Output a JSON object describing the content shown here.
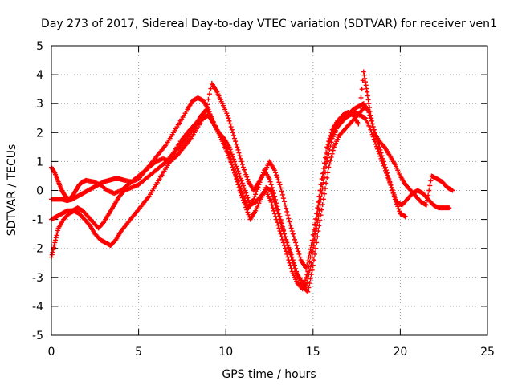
{
  "chart_data": {
    "type": "scatter",
    "title": "Day 273 of 2017, Sidereal Day-to-day VTEC variation (SDTVAR) for receiver ven1",
    "xlabel": "GPS time / hours",
    "ylabel": "SDTVAR / TECUs",
    "xlim": [
      0,
      25
    ],
    "ylim": [
      -5,
      5
    ],
    "xticks": [
      0,
      5,
      10,
      15,
      20,
      25
    ],
    "yticks": [
      -5,
      -4,
      -3,
      -2,
      -1,
      0,
      1,
      2,
      3,
      4,
      5
    ],
    "grid": true,
    "legend": "none",
    "marker": "+",
    "color": "#ff0000",
    "series": [
      {
        "x": [
          0.0,
          0.3,
          0.6,
          0.9,
          1.2,
          1.5,
          1.8,
          2.1,
          2.4,
          2.7,
          3.0,
          3.3,
          3.6,
          3.9,
          4.2,
          4.6,
          5.0,
          5.4,
          5.8,
          6.2,
          6.6,
          7.0,
          7.4,
          7.8,
          8.1,
          8.4,
          8.7,
          9.0,
          9.3,
          9.6,
          9.9,
          10.2,
          10.5,
          10.8,
          11.1,
          11.4,
          11.7,
          12.0,
          12.3,
          12.6,
          12.9,
          13.2,
          13.5,
          13.8,
          14.1,
          14.4,
          14.7,
          15.0,
          15.3,
          15.6,
          15.9,
          16.2,
          16.5,
          16.8,
          17.1,
          17.4,
          17.7,
          18.0,
          18.3,
          18.6,
          18.9,
          19.2,
          19.5,
          19.8,
          20.1,
          20.4,
          20.7,
          21.0,
          21.3,
          21.6,
          21.9,
          22.2,
          22.5,
          22.8
        ],
        "y": [
          -0.3,
          -0.3,
          -0.3,
          -0.35,
          -0.3,
          -0.2,
          -0.1,
          0.0,
          0.1,
          0.2,
          0.3,
          0.35,
          0.4,
          0.4,
          0.35,
          0.3,
          0.4,
          0.7,
          1.0,
          1.3,
          1.6,
          2.0,
          2.4,
          2.8,
          3.1,
          3.2,
          3.1,
          2.8,
          2.3,
          2.0,
          1.8,
          1.5,
          1.0,
          0.5,
          0.0,
          -0.5,
          -0.4,
          -0.2,
          0.0,
          -0.4,
          -1.0,
          -1.6,
          -2.2,
          -2.8,
          -3.2,
          -3.4,
          -2.8,
          -1.8,
          -0.6,
          0.6,
          1.6,
          2.1,
          2.3,
          2.5,
          2.6,
          2.7,
          2.6,
          2.5,
          2.1,
          1.6,
          1.1,
          0.6,
          0.1,
          -0.4,
          -0.5,
          -0.3,
          -0.1,
          0.0,
          -0.1,
          -0.3,
          -0.5,
          -0.6,
          -0.6,
          -0.6
        ]
      },
      {
        "x": [
          0.0,
          0.3,
          0.6,
          0.9,
          1.2,
          1.5,
          1.8,
          2.1,
          2.4,
          2.7,
          3.0,
          3.3,
          3.6,
          3.9,
          4.2,
          4.6,
          5.0,
          5.4,
          5.8,
          6.2,
          6.6,
          7.0,
          7.4,
          7.8,
          8.1,
          8.4,
          8.7,
          9.0,
          9.3,
          9.6,
          9.9,
          10.2,
          10.5,
          10.8,
          11.1,
          11.4,
          11.7,
          12.0,
          12.3,
          12.6,
          12.9,
          13.2,
          13.5,
          13.8,
          14.1,
          14.4,
          14.7,
          15.0,
          15.3,
          15.6,
          15.9,
          16.2,
          16.5,
          16.8,
          17.1,
          17.4,
          17.7,
          18.0
        ],
        "y": [
          -1.0,
          -0.9,
          -0.8,
          -0.7,
          -0.7,
          -0.6,
          -0.7,
          -0.9,
          -1.1,
          -1.3,
          -1.1,
          -0.8,
          -0.5,
          -0.2,
          0.0,
          0.1,
          0.2,
          0.4,
          0.6,
          0.8,
          1.0,
          1.3,
          1.7,
          2.0,
          2.2,
          2.4,
          2.5,
          2.6,
          2.3,
          2.0,
          1.7,
          1.2,
          0.6,
          0.0,
          -0.5,
          -1.0,
          -0.7,
          -0.3,
          0.1,
          0.0,
          -0.6,
          -1.2,
          -1.8,
          -2.3,
          -2.9,
          -3.3,
          -3.5,
          -2.6,
          -1.4,
          -0.3,
          0.8,
          1.5,
          1.9,
          2.1,
          2.3,
          2.5,
          2.7,
          2.9
        ]
      },
      {
        "x": [
          0.0,
          0.2,
          0.4,
          0.7,
          1.0,
          1.3,
          1.6,
          1.9,
          2.2,
          2.5,
          2.8,
          3.1,
          3.4,
          3.7,
          4.0,
          4.4,
          4.8,
          5.2,
          5.6,
          6.0,
          6.4,
          6.8,
          7.2,
          7.6,
          8.0,
          8.3,
          8.6,
          8.9,
          9.2,
          9.5,
          9.8,
          10.1,
          10.4,
          10.7,
          11.0,
          11.3,
          11.6,
          11.9,
          12.2,
          12.5,
          12.8,
          13.1,
          13.4,
          13.7,
          14.0,
          14.3,
          14.6,
          14.9,
          15.2,
          15.5,
          15.8,
          16.1,
          16.4,
          16.7,
          17.0,
          17.3,
          17.6,
          17.9,
          18.2,
          18.5,
          18.8,
          19.1,
          19.4,
          19.7,
          20.0,
          20.3
        ],
        "y": [
          -2.3,
          -1.8,
          -1.3,
          -1.0,
          -0.8,
          -0.7,
          -0.8,
          -1.0,
          -1.2,
          -1.5,
          -1.7,
          -1.8,
          -1.9,
          -1.7,
          -1.4,
          -1.1,
          -0.8,
          -0.5,
          -0.2,
          0.2,
          0.6,
          1.0,
          1.4,
          1.7,
          2.0,
          2.3,
          2.6,
          2.8,
          2.5,
          2.1,
          1.7,
          1.3,
          0.8,
          0.3,
          -0.2,
          -0.6,
          -0.3,
          0.2,
          0.7,
          0.4,
          -0.2,
          -0.9,
          -1.6,
          -2.2,
          -2.8,
          -3.1,
          -3.3,
          -2.5,
          -1.3,
          -0.1,
          1.0,
          1.8,
          2.2,
          2.4,
          2.6,
          2.8,
          2.9,
          3.0,
          2.7,
          2.1,
          1.5,
          0.9,
          0.3,
          -0.3,
          -0.8,
          -0.9
        ]
      },
      {
        "x": [
          0.0,
          0.2,
          0.4,
          0.6,
          0.8,
          1.0,
          1.2,
          1.4,
          1.6,
          1.8,
          2.0,
          2.4,
          2.8,
          3.2,
          3.6,
          4.0,
          4.4,
          4.8,
          5.2,
          5.6,
          6.0,
          6.4,
          6.8,
          7.2,
          7.6,
          8.0,
          8.4,
          8.8,
          9.2,
          9.5,
          9.8,
          10.1,
          10.4,
          10.7,
          11.0,
          11.3,
          11.6,
          11.9,
          12.2,
          12.5,
          12.8,
          13.1,
          13.4,
          13.7,
          14.0,
          14.3,
          14.6,
          14.9,
          15.2,
          15.5,
          15.8,
          16.1,
          16.4,
          16.7,
          17.0,
          17.3,
          17.6,
          17.9,
          18.1,
          18.3,
          18.5,
          18.8,
          19.1,
          19.4,
          19.7,
          20.0,
          20.3,
          20.6,
          20.9,
          21.2,
          21.5,
          21.8,
          22.1,
          22.4,
          22.7,
          23.0
        ],
        "y": [
          0.8,
          0.6,
          0.3,
          0.0,
          -0.2,
          -0.3,
          -0.2,
          0.0,
          0.2,
          0.3,
          0.35,
          0.3,
          0.2,
          0.0,
          -0.1,
          0.0,
          0.2,
          0.4,
          0.6,
          0.8,
          1.0,
          1.1,
          1.0,
          1.2,
          1.5,
          1.8,
          2.2,
          2.6,
          3.7,
          3.4,
          3.0,
          2.6,
          2.0,
          1.4,
          0.8,
          0.3,
          0.0,
          0.3,
          0.6,
          1.0,
          0.7,
          0.2,
          -0.5,
          -1.2,
          -1.8,
          -2.4,
          -2.7,
          -1.9,
          -0.8,
          0.4,
          1.5,
          2.1,
          2.4,
          2.6,
          2.7,
          2.6,
          2.3,
          4.1,
          3.4,
          2.6,
          2.0,
          1.7,
          1.5,
          1.2,
          0.9,
          0.5,
          0.2,
          0.0,
          -0.2,
          -0.4,
          -0.5,
          0.5,
          0.4,
          0.3,
          0.1,
          0.0
        ]
      }
    ]
  }
}
